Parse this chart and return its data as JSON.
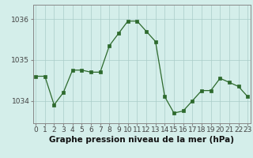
{
  "hours": [
    0,
    1,
    2,
    3,
    4,
    5,
    6,
    7,
    8,
    9,
    10,
    11,
    12,
    13,
    14,
    15,
    16,
    17,
    18,
    19,
    20,
    21,
    22,
    23
  ],
  "pressure": [
    1034.6,
    1034.6,
    1033.9,
    1034.2,
    1034.75,
    1034.75,
    1034.7,
    1034.7,
    1035.35,
    1035.65,
    1035.95,
    1035.95,
    1035.7,
    1035.45,
    1034.1,
    1033.7,
    1033.75,
    1034.0,
    1034.25,
    1034.25,
    1034.55,
    1034.45,
    1034.35,
    1034.1
  ],
  "line_color": "#2d6a2d",
  "marker_color": "#2d6a2d",
  "bg_color": "#d4eeea",
  "grid_color": "#aaccc8",
  "ylabel_ticks": [
    1034,
    1035,
    1036
  ],
  "xlabel": "Graphe pression niveau de la mer (hPa)",
  "ylim_min": 1033.45,
  "ylim_max": 1036.35,
  "tick_color": "#444444",
  "border_color": "#888888",
  "xlabel_fontsize": 7.5,
  "tick_fontsize": 6.5
}
